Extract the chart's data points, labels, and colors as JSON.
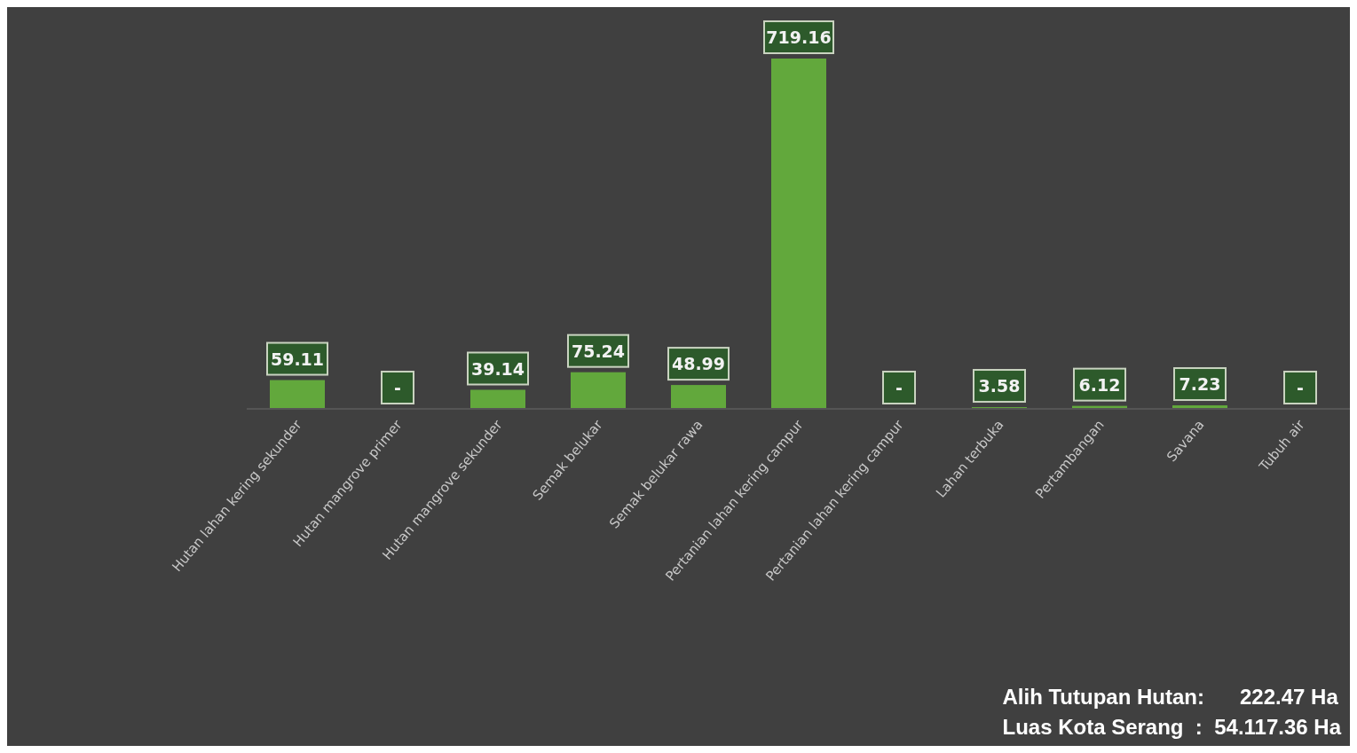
{
  "chart_data": {
    "type": "bar",
    "categories": [
      "Hutan lahan kering sekunder",
      "Hutan mangrove primer",
      "Hutan mangrove sekunder",
      "Semak belukar",
      "Semak belukar rawa",
      "Pertanian lahan kering campur",
      "Pertanian lahan kering campur",
      "Lahan terbuka",
      "Pertambangan",
      "Savana",
      "Tubuh air"
    ],
    "values": [
      59.11,
      0,
      39.14,
      75.24,
      48.99,
      719.16,
      0,
      3.58,
      6.12,
      7.23,
      0
    ],
    "value_labels": [
      "59.11",
      "-",
      "39.14",
      "75.24",
      "48.99",
      "719.16",
      "-",
      "3.58",
      "6.12",
      "7.23",
      "-"
    ],
    "color": "#62a83c",
    "annotations": [
      "Alih Tutupan Hutan:      222.47 Ha",
      "Luas Kota Serang  :  54.117.36 Ha"
    ]
  }
}
